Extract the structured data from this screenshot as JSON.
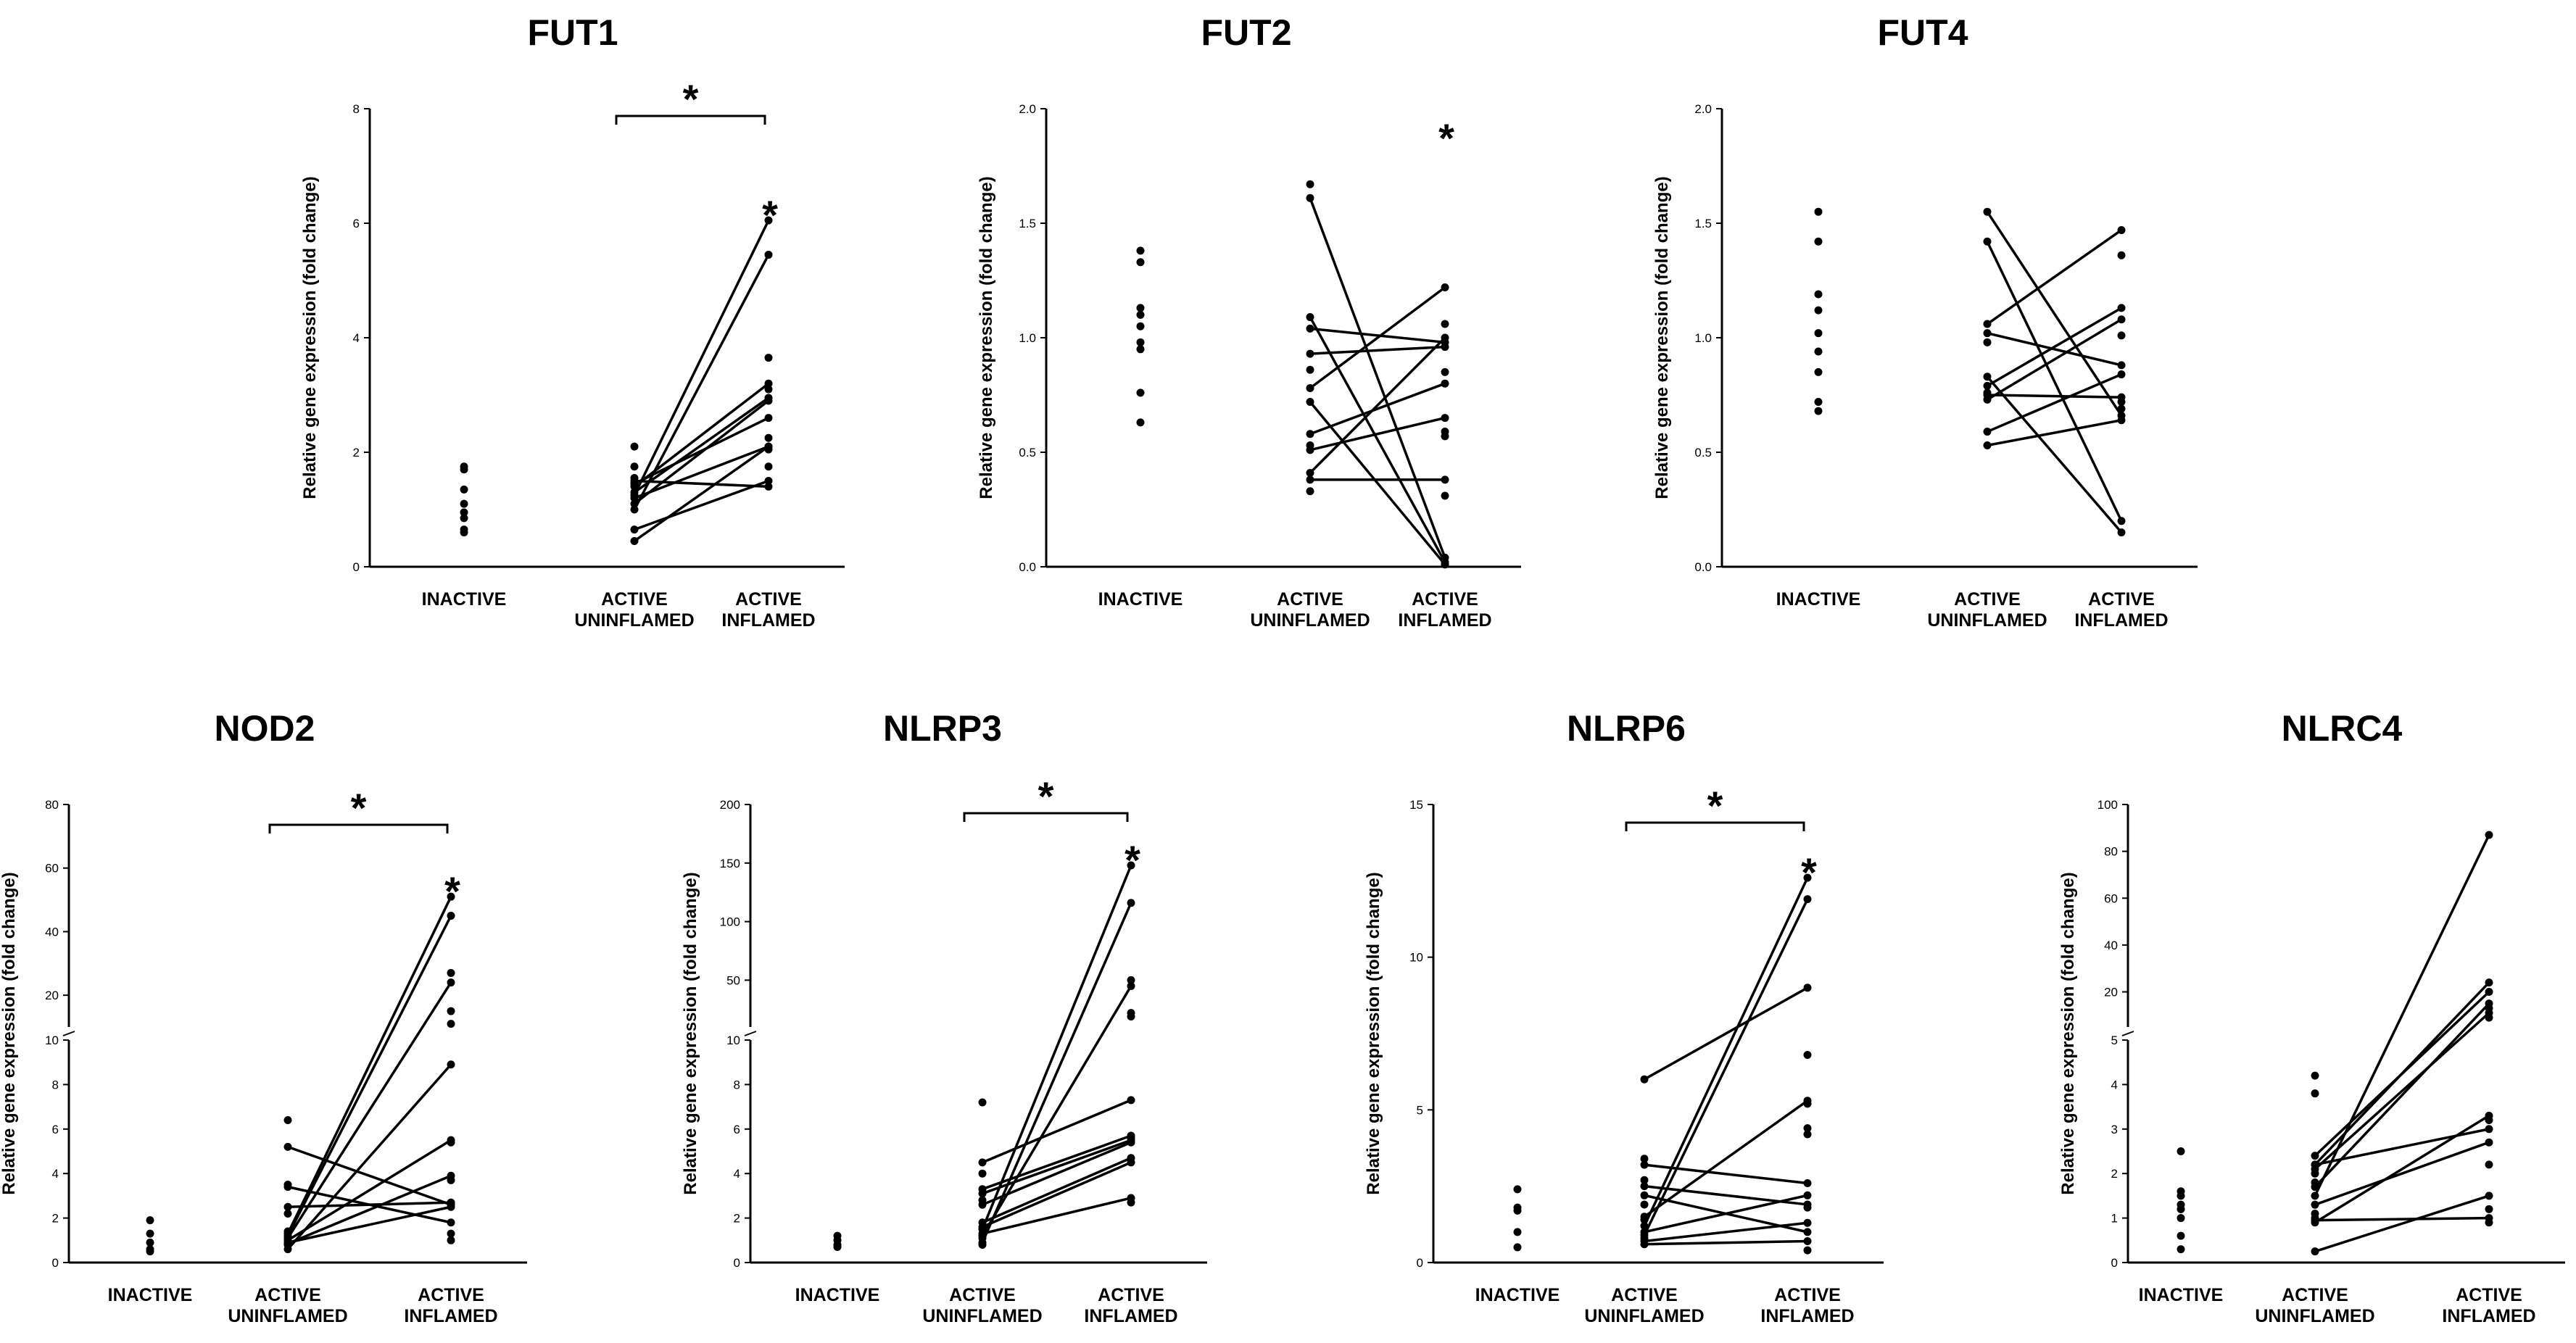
{
  "chart_data": [
    {
      "type": "scatter",
      "title": "FUT1",
      "ylabel": "Relative gene expression (fold change)",
      "categories": [
        "INACTIVE",
        "ACTIVE\nUNINFLAMED",
        "ACTIVE\nINFLAMED"
      ],
      "ylim": [
        0,
        8
      ],
      "yticks": [
        "0",
        "2",
        "4",
        "6",
        "8"
      ],
      "bracket": {
        "label": "*"
      },
      "group_star": "*",
      "inactive": [
        1.75,
        1.7,
        1.35,
        1.1,
        0.95,
        0.85,
        0.65,
        0.6
      ],
      "paired": [
        [
          1.25,
          6.05
        ],
        [
          1.0,
          5.45
        ],
        [
          1.4,
          3.2
        ],
        [
          1.3,
          2.95
        ],
        [
          1.45,
          2.6
        ],
        [
          0.45,
          2.1
        ],
        [
          1.1,
          2.9
        ],
        [
          0.65,
          1.5
        ],
        [
          1.5,
          1.4
        ],
        [
          1.2,
          2.1
        ]
      ],
      "extra_active": [
        2.1,
        1.75,
        1.55,
        1.45
      ],
      "extra_inflamed": [
        3.65,
        3.1,
        2.25,
        2.05,
        1.75
      ]
    },
    {
      "type": "scatter",
      "title": "FUT2",
      "ylabel": "Relative gene expression (fold change)",
      "categories": [
        "INACTIVE",
        "ACTIVE\nUNINFLAMED",
        "ACTIVE\nINFLAMED"
      ],
      "ylim": [
        0,
        2.0
      ],
      "yticks": [
        "0.0",
        "0.5",
        "1.0",
        "1.5",
        "2.0"
      ],
      "group_star": "*",
      "inactive": [
        1.38,
        1.33,
        1.13,
        1.1,
        1.05,
        0.98,
        0.95,
        0.76,
        0.63
      ],
      "paired": [
        [
          1.61,
          0.04
        ],
        [
          1.09,
          0.02
        ],
        [
          1.04,
          0.98
        ],
        [
          0.93,
          0.96
        ],
        [
          0.78,
          1.22
        ],
        [
          0.72,
          0.01
        ],
        [
          0.58,
          0.8
        ],
        [
          0.51,
          0.65
        ],
        [
          0.41,
          1.0
        ],
        [
          0.38,
          0.38
        ]
      ],
      "extra_active": [
        1.67,
        0.86,
        0.53,
        0.33
      ],
      "extra_inflamed": [
        1.06,
        0.85,
        0.59,
        0.57,
        0.31
      ]
    },
    {
      "type": "scatter",
      "title": "FUT4",
      "ylabel": "Relative gene expression (fold change)",
      "categories": [
        "INACTIVE",
        "ACTIVE\nUNINFLAMED",
        "ACTIVE\nINFLAMED"
      ],
      "ylim": [
        0,
        2.0
      ],
      "yticks": [
        "0.0",
        "0.5",
        "1.0",
        "1.5",
        "2.0"
      ],
      "inactive": [
        1.55,
        1.42,
        1.19,
        1.12,
        1.02,
        0.94,
        0.85,
        0.72,
        0.68
      ],
      "paired": [
        [
          1.55,
          0.66
        ],
        [
          1.42,
          0.2
        ],
        [
          1.06,
          1.47
        ],
        [
          1.02,
          0.88
        ],
        [
          0.83,
          0.15
        ],
        [
          0.79,
          1.13
        ],
        [
          0.75,
          0.74
        ],
        [
          0.73,
          1.08
        ],
        [
          0.59,
          0.84
        ],
        [
          0.53,
          0.64
        ]
      ],
      "extra_active": [
        0.98,
        0.76
      ],
      "extra_inflamed": [
        1.36,
        1.01,
        0.72,
        0.69
      ]
    },
    {
      "type": "scatter",
      "title": "NOD2",
      "ylabel": "Relative gene expression (fold change)",
      "categories": [
        "INACTIVE",
        "ACTIVE\nUNINFLAMED",
        "ACTIVE\nINFLAMED"
      ],
      "ylim_lower": [
        0,
        10
      ],
      "ylim_upper": [
        10,
        80
      ],
      "yticks_lower": [
        "0",
        "2",
        "4",
        "6",
        "8",
        "10"
      ],
      "yticks_upper": [
        "20",
        "40",
        "60",
        "80"
      ],
      "bracket": {
        "label": "*"
      },
      "group_star": "*",
      "inactive": [
        1.9,
        1.3,
        0.9,
        0.6,
        0.5
      ],
      "paired": [
        [
          1.3,
          51
        ],
        [
          1.2,
          45
        ],
        [
          1.1,
          24
        ],
        [
          0.6,
          8.9
        ],
        [
          1.0,
          5.5
        ],
        [
          0.85,
          3.9
        ],
        [
          3.4,
          1.8
        ],
        [
          2.5,
          2.7
        ],
        [
          5.2,
          2.6
        ],
        [
          0.9,
          2.5
        ]
      ],
      "extra_active": [
        6.4,
        3.5,
        2.2,
        1.4,
        0.8
      ],
      "extra_inflamed": [
        27,
        15,
        11,
        5.4,
        3.7,
        1.3,
        1.0
      ]
    },
    {
      "type": "scatter",
      "title": "NLRP3",
      "ylabel": "Relative gene expression (fold change)",
      "categories": [
        "INACTIVE",
        "ACTIVE\nUNINFLAMED",
        "ACTIVE\nINFLAMED"
      ],
      "ylim_lower": [
        0,
        10
      ],
      "ylim_upper": [
        10,
        200
      ],
      "yticks_lower": [
        "0",
        "2",
        "4",
        "6",
        "8",
        "10"
      ],
      "yticks_upper": [
        "50",
        "100",
        "150",
        "200"
      ],
      "bracket": {
        "label": "*"
      },
      "group_star": "*",
      "inactive": [
        1.2,
        1.0,
        0.8,
        0.7
      ],
      "paired": [
        [
          1.5,
          148
        ],
        [
          0.9,
          116
        ],
        [
          1.2,
          45
        ],
        [
          4.5,
          7.3
        ],
        [
          3.3,
          5.7
        ],
        [
          3.1,
          5.5
        ],
        [
          2.6,
          5.4
        ],
        [
          1.8,
          4.7
        ],
        [
          1.6,
          4.5
        ],
        [
          1.3,
          2.9
        ]
      ],
      "extra_active": [
        7.2,
        4.0,
        2.8,
        1.1,
        0.8
      ],
      "extra_inflamed": [
        50,
        22,
        19,
        5.6,
        2.7
      ]
    },
    {
      "type": "scatter",
      "title": "NLRP6",
      "ylabel": "Relative gene expression (fold change)",
      "categories": [
        "INACTIVE",
        "ACTIVE\nUNINFLAMED",
        "ACTIVE\nINFLAMED"
      ],
      "ylim": [
        0,
        15
      ],
      "yticks": [
        "0",
        "5",
        "10",
        "15"
      ],
      "bracket": {
        "label": "*"
      },
      "group_star": "*",
      "inactive": [
        2.4,
        1.8,
        1.7,
        1.0,
        0.5
      ],
      "paired": [
        [
          1.2,
          12.6
        ],
        [
          0.9,
          11.9
        ],
        [
          6.0,
          9.0
        ],
        [
          1.5,
          5.3
        ],
        [
          3.2,
          2.6
        ],
        [
          1.0,
          2.2
        ],
        [
          2.5,
          1.9
        ],
        [
          0.7,
          1.3
        ],
        [
          2.2,
          1.0
        ],
        [
          0.6,
          0.7
        ]
      ],
      "extra_active": [
        3.4,
        2.7,
        1.9,
        1.4,
        0.8
      ],
      "extra_inflamed": [
        6.8,
        5.2,
        4.4,
        4.2,
        1.8,
        0.4
      ]
    },
    {
      "type": "scatter",
      "title": "NLRC4",
      "ylabel": "Relative gene expression (fold change)",
      "categories": [
        "INACTIVE",
        "ACTIVE\nUNINFLAMED",
        "ACTIVE\nINFLAMED"
      ],
      "ylim_lower": [
        0,
        5
      ],
      "ylim_upper": [
        5,
        100
      ],
      "yticks_lower": [
        "0",
        "1",
        "2",
        "3",
        "4",
        "5"
      ],
      "yticks_upper": [
        "20",
        "40",
        "60",
        "80",
        "100"
      ],
      "inactive": [
        2.5,
        1.6,
        1.5,
        1.3,
        1.2,
        1.0,
        0.6,
        0.3
      ],
      "paired": [
        [
          1.5,
          87
        ],
        [
          2.2,
          24
        ],
        [
          2.4,
          20
        ],
        [
          1.7,
          15
        ],
        [
          2.1,
          11
        ],
        [
          0.9,
          3.3
        ],
        [
          2.2,
          3.0
        ],
        [
          1.3,
          2.7
        ],
        [
          0.25,
          1.5
        ],
        [
          0.95,
          1.0
        ]
      ],
      "extra_active": [
        4.2,
        3.8,
        2.0,
        1.8,
        1.1,
        1.0
      ],
      "extra_inflamed": [
        13,
        9,
        3.2,
        2.2,
        1.2,
        0.9
      ]
    }
  ]
}
